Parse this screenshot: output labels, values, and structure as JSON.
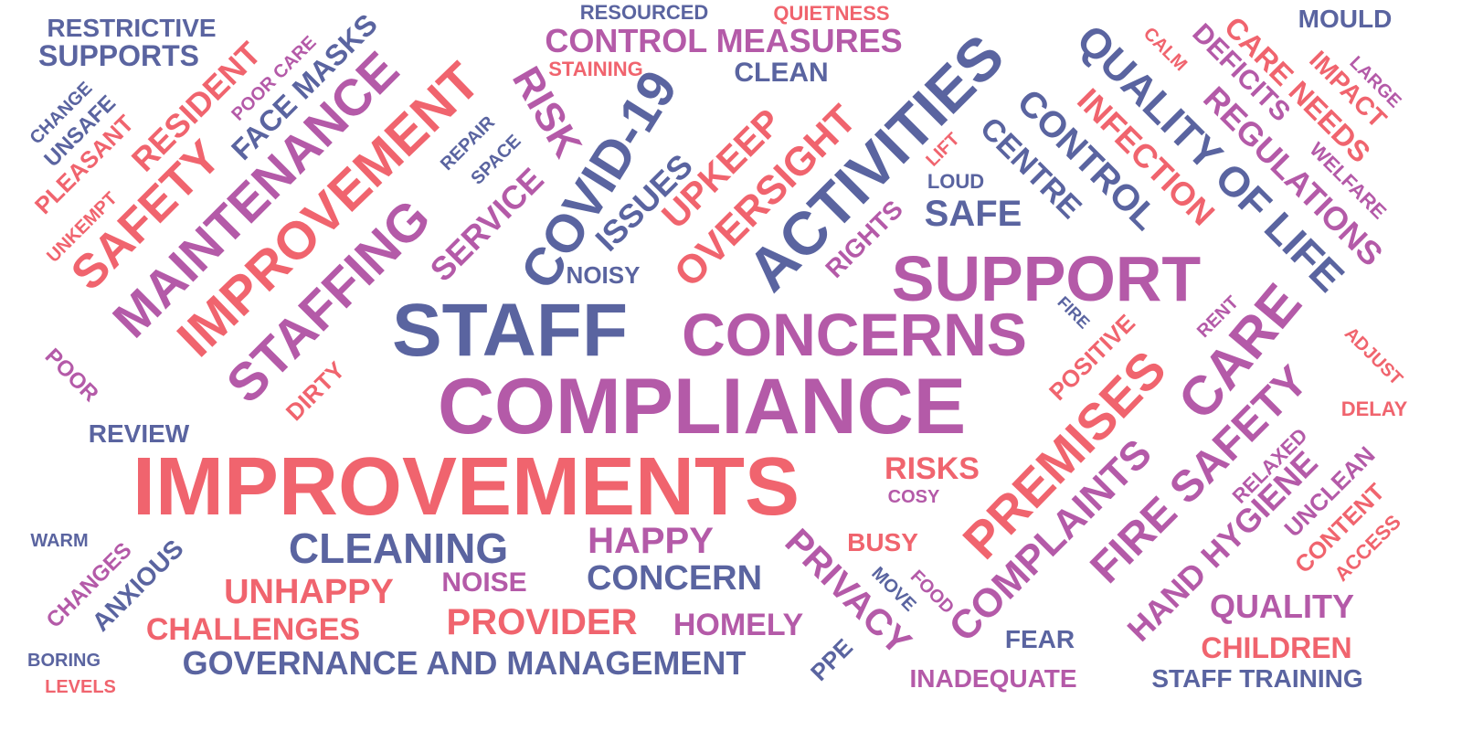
{
  "colors": {
    "blue": "#5a64a0",
    "purple": "#b45aa8",
    "coral": "#f0646e",
    "background": "#ffffff"
  },
  "words": [
    {
      "text": "COMPLIANCE",
      "color": "purple"
    },
    {
      "text": "IMPROVEMENTS",
      "color": "coral"
    },
    {
      "text": "STAFF",
      "color": "blue"
    },
    {
      "text": "SUPPORT",
      "color": "purple"
    },
    {
      "text": "CONCERNS",
      "color": "purple"
    },
    {
      "text": "ACTIVITIES",
      "color": "blue"
    },
    {
      "text": "COVID-19",
      "color": "blue"
    },
    {
      "text": "IMPROVEMENT",
      "color": "coral"
    },
    {
      "text": "MAINTENANCE",
      "color": "purple"
    },
    {
      "text": "STAFFING",
      "color": "purple"
    },
    {
      "text": "SAFETY",
      "color": "coral"
    },
    {
      "text": "PREMISES",
      "color": "coral"
    },
    {
      "text": "CARE",
      "color": "purple"
    },
    {
      "text": "FIRE SAFETY",
      "color": "purple"
    },
    {
      "text": "COMPLAINTS",
      "color": "purple"
    },
    {
      "text": "HAND HYGIENE",
      "color": "purple"
    },
    {
      "text": "QUALITY OF LIFE",
      "color": "blue"
    },
    {
      "text": "CONTROL",
      "color": "blue"
    },
    {
      "text": "CENTRE",
      "color": "blue"
    },
    {
      "text": "INFECTION",
      "color": "coral"
    },
    {
      "text": "REGULATIONS",
      "color": "purple"
    },
    {
      "text": "DEFICITS",
      "color": "purple"
    },
    {
      "text": "CARE NEEDS",
      "color": "coral"
    },
    {
      "text": "IMPACT",
      "color": "coral"
    },
    {
      "text": "WELFARE",
      "color": "purple"
    },
    {
      "text": "LARGE",
      "color": "purple"
    },
    {
      "text": "MOULD",
      "color": "blue"
    },
    {
      "text": "CALM",
      "color": "coral"
    },
    {
      "text": "LIFT",
      "color": "coral"
    },
    {
      "text": "CONTROL MEASURES",
      "color": "purple"
    },
    {
      "text": "RESOURCED",
      "color": "blue"
    },
    {
      "text": "QUIETNESS",
      "color": "coral"
    },
    {
      "text": "STAINING",
      "color": "coral"
    },
    {
      "text": "CLEAN",
      "color": "blue"
    },
    {
      "text": "RISK",
      "color": "purple"
    },
    {
      "text": "UPKEEP",
      "color": "coral"
    },
    {
      "text": "OVERSIGHT",
      "color": "coral"
    },
    {
      "text": "ISSUES",
      "color": "blue"
    },
    {
      "text": "SERVICE",
      "color": "purple"
    },
    {
      "text": "SPACE",
      "color": "blue"
    },
    {
      "text": "REPAIR",
      "color": "blue"
    },
    {
      "text": "NOISY",
      "color": "blue"
    },
    {
      "text": "RIGHTS",
      "color": "purple"
    },
    {
      "text": "LOUD",
      "color": "blue"
    },
    {
      "text": "SAFE",
      "color": "blue"
    },
    {
      "text": "RESTRICTIVE",
      "color": "blue"
    },
    {
      "text": "SUPPORTS",
      "color": "blue"
    },
    {
      "text": "FACE MASKS",
      "color": "blue"
    },
    {
      "text": "POOR CARE",
      "color": "purple"
    },
    {
      "text": "RESIDENT",
      "color": "coral"
    },
    {
      "text": "CHANGE",
      "color": "blue"
    },
    {
      "text": "UNSAFE",
      "color": "blue"
    },
    {
      "text": "PLEASANT",
      "color": "coral"
    },
    {
      "text": "UNKEMPT",
      "color": "coral"
    },
    {
      "text": "POOR",
      "color": "purple"
    },
    {
      "text": "DIRTY",
      "color": "coral"
    },
    {
      "text": "REVIEW",
      "color": "blue"
    },
    {
      "text": "WARM",
      "color": "blue"
    },
    {
      "text": "CHANGES",
      "color": "purple"
    },
    {
      "text": "ANXIOUS",
      "color": "blue"
    },
    {
      "text": "BORING",
      "color": "blue"
    },
    {
      "text": "LEVELS",
      "color": "coral"
    },
    {
      "text": "CLEANING",
      "color": "blue"
    },
    {
      "text": "UNHAPPY",
      "color": "coral"
    },
    {
      "text": "CHALLENGES",
      "color": "coral"
    },
    {
      "text": "GOVERNANCE AND MANAGEMENT",
      "color": "blue"
    },
    {
      "text": "HAPPY",
      "color": "purple"
    },
    {
      "text": "CONCERN",
      "color": "blue"
    },
    {
      "text": "NOISE",
      "color": "purple"
    },
    {
      "text": "PROVIDER",
      "color": "coral"
    },
    {
      "text": "HOMELY",
      "color": "purple"
    },
    {
      "text": "PRIVACY",
      "color": "purple"
    },
    {
      "text": "RISKS",
      "color": "coral"
    },
    {
      "text": "COSY",
      "color": "purple"
    },
    {
      "text": "BUSY",
      "color": "coral"
    },
    {
      "text": "MOVE",
      "color": "blue"
    },
    {
      "text": "FOOD",
      "color": "purple"
    },
    {
      "text": "PPE",
      "color": "blue"
    },
    {
      "text": "FEAR",
      "color": "blue"
    },
    {
      "text": "INADEQUATE",
      "color": "purple"
    },
    {
      "text": "POSITIVE",
      "color": "coral"
    },
    {
      "text": "FIRE",
      "color": "blue"
    },
    {
      "text": "RENT",
      "color": "purple"
    },
    {
      "text": "ADJUST",
      "color": "coral"
    },
    {
      "text": "DELAY",
      "color": "coral"
    },
    {
      "text": "RELAXED",
      "color": "purple"
    },
    {
      "text": "UNCLEAN",
      "color": "purple"
    },
    {
      "text": "CONTENT",
      "color": "coral"
    },
    {
      "text": "ACCESS",
      "color": "coral"
    },
    {
      "text": "QUALITY",
      "color": "purple"
    },
    {
      "text": "CHILDREN",
      "color": "coral"
    },
    {
      "text": "STAFF TRAINING",
      "color": "blue"
    }
  ]
}
